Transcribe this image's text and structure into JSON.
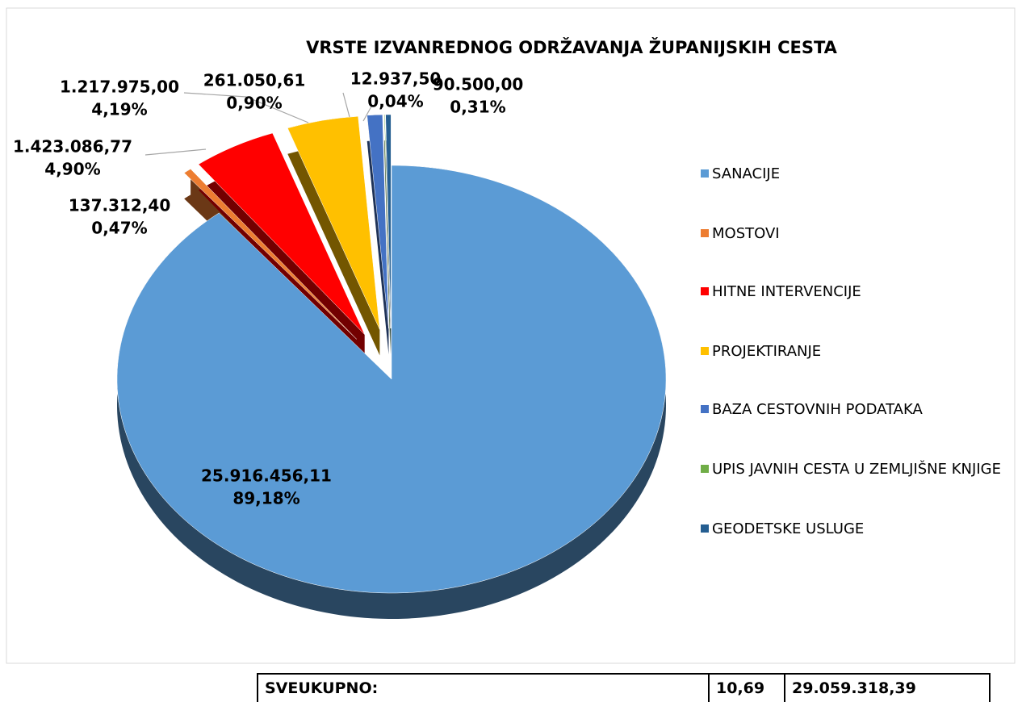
{
  "chart_data": {
    "type": "pie",
    "title": "VRSTE IZVANREDNOG ODRŽAVANJA ŽUPANIJSKIH CESTA",
    "categories": [
      "SANACIJE",
      "MOSTOVI",
      "HITNE INTERVENCIJE",
      "PROJEKTIRANJE",
      "BAZA CESTOVNIH PODATAKA",
      "UPIS JAVNIH CESTA U ZEMLJIŠNE KNJIGE",
      "GEODETSKE USLUGE"
    ],
    "values": [
      25916456.11,
      137312.4,
      1423086.77,
      1217975.0,
      261050.61,
      12937.5,
      90500.0
    ],
    "value_labels": [
      "25.916.456,11",
      "137.312,40",
      "1.423.086,77",
      "1.217.975,00",
      "261.050,61",
      "12.937,50",
      "90.500,00"
    ],
    "percent_labels": [
      "89,18%",
      "0,47%",
      "4,90%",
      "4,19%",
      "0,90%",
      "0,04%",
      "0,31%"
    ],
    "colors": [
      "#5b9bd5",
      "#ed7d31",
      "#ff0000",
      "#ffc000",
      "#4472c4",
      "#70ad47",
      "#255e91"
    ],
    "legend": "right"
  },
  "table": {
    "rows": [
      [
        "SVEUKUPNO:",
        "10,69",
        "29.059.318,39"
      ]
    ]
  }
}
